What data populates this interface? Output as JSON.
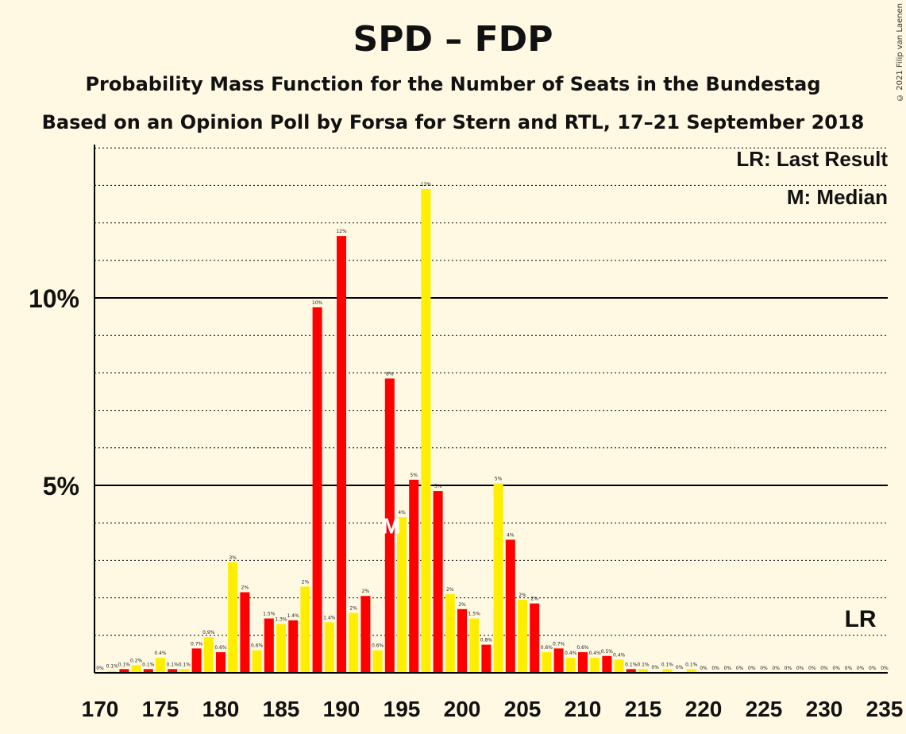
{
  "chart_data": {
    "type": "bar",
    "title": "SPD – FDP",
    "subtitle": "Probability Mass Function for the Number of Seats in the Bundestag",
    "subtitle2": "Based on an Opinion Poll by Forsa for Stern and RTL, 17–21 September 2018",
    "copyright": "© 2021 Filip van Laenen",
    "legend": {
      "last_result": "LR: Last Result",
      "median": "M: Median",
      "placement": "top-right"
    },
    "x_range": [
      170,
      235
    ],
    "x_ticks": [
      170,
      175,
      180,
      185,
      190,
      195,
      200,
      205,
      210,
      215,
      220,
      225,
      230,
      235
    ],
    "y_range": [
      0,
      14
    ],
    "y_ticks": [
      {
        "value": 5,
        "label": "5%"
      },
      {
        "value": 10,
        "label": "10%"
      }
    ],
    "gridlines_dotted_every": 1,
    "colors": {
      "red": "#FF0000",
      "yellow": "#FFEE00",
      "background": "#FFF9E3"
    },
    "median": {
      "seat": 194,
      "marker": "M"
    },
    "last_result": {
      "seat": 233,
      "marker": "LR"
    },
    "seats": [
      170,
      171,
      172,
      173,
      174,
      175,
      176,
      177,
      178,
      179,
      180,
      181,
      182,
      183,
      184,
      185,
      186,
      187,
      188,
      189,
      190,
      191,
      192,
      193,
      194,
      195,
      196,
      197,
      198,
      199,
      200,
      201,
      202,
      203,
      204,
      205,
      206,
      207,
      208,
      209,
      210,
      211,
      212,
      213,
      214,
      215,
      216,
      217,
      218,
      219,
      220,
      221,
      222,
      223,
      224,
      225,
      226,
      227,
      228,
      229,
      230,
      231,
      232,
      233,
      234,
      235
    ],
    "values": [
      0,
      0.05,
      0.1,
      0.2,
      0.1,
      0.4,
      0.1,
      0.1,
      0.65,
      0.95,
      0.55,
      2.95,
      2.15,
      0.6,
      1.45,
      1.3,
      1.4,
      2.3,
      9.75,
      1.35,
      11.65,
      1.6,
      2.05,
      0.6,
      7.85,
      4.15,
      5.15,
      12.9,
      4.85,
      2.1,
      1.7,
      1.45,
      0.75,
      5.05,
      3.55,
      1.95,
      1.85,
      0.55,
      0.65,
      0.4,
      0.55,
      0.4,
      0.45,
      0.35,
      0.1,
      0.1,
      0.02,
      0.1,
      0.02,
      0.1,
      0,
      0,
      0,
      0,
      0,
      0,
      0,
      0,
      0,
      0,
      0,
      0,
      0,
      0,
      0,
      0
    ],
    "labels": [
      "0%",
      "0.1%",
      "0.1%",
      "0.2%",
      "0.1%",
      "0.4%",
      "0.1%",
      "0.1%",
      "0.7%",
      "0.9%",
      "0.6%",
      "3%",
      "2%",
      "0.6%",
      "1.5%",
      "1.3%",
      "1.4%",
      "2%",
      "10%",
      "1.4%",
      "12%",
      "2%",
      "2%",
      "0.6%",
      "8%",
      "4%",
      "5%",
      "13%",
      "5%",
      "2%",
      "2%",
      "1.5%",
      "0.8%",
      "5%",
      "4%",
      "2%",
      "2%",
      "0.6%",
      "0.7%",
      "0.4%",
      "0.6%",
      "0.4%",
      "0.5%",
      "0.4%",
      "0.1%",
      "0.1%",
      "0%",
      "0.1%",
      "0%",
      "0.1%",
      "0%",
      "0%",
      "0%",
      "0%",
      "0%",
      "0%",
      "0%",
      "0%",
      "0%",
      "0%",
      "0%",
      "0%",
      "0%",
      "0%",
      "0%",
      "0%"
    ]
  }
}
